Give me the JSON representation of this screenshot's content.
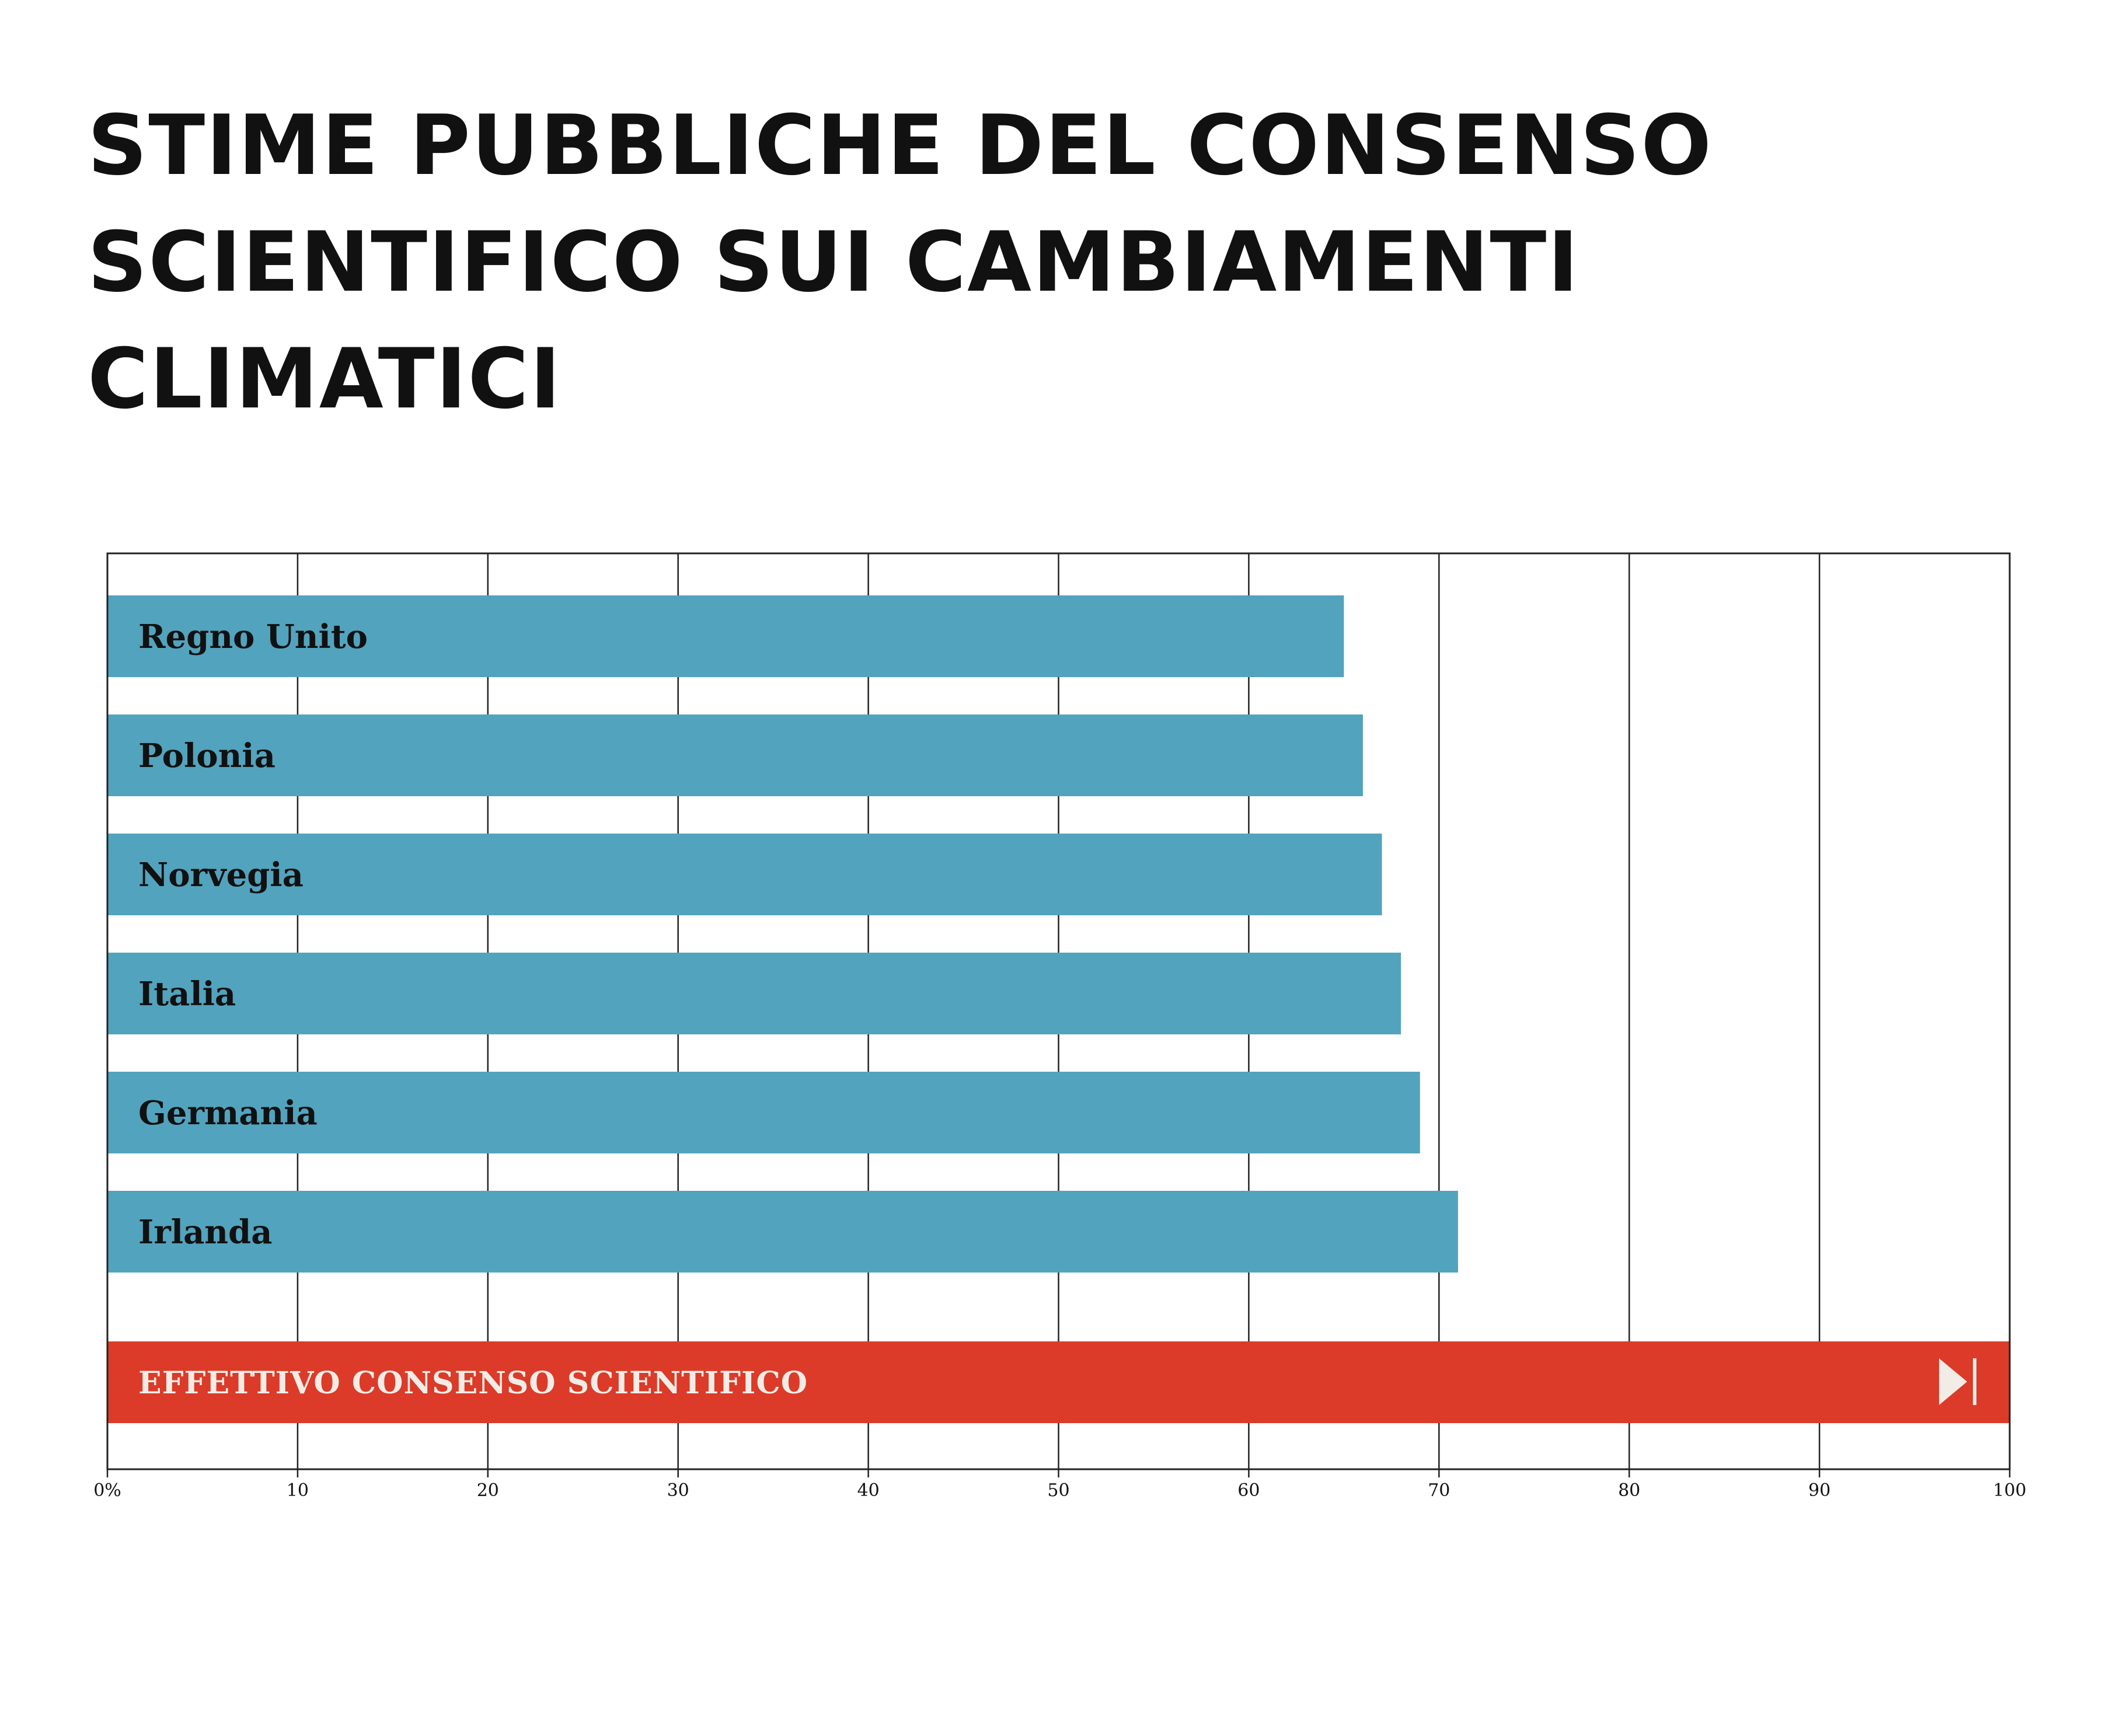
{
  "chart_data": {
    "type": "bar",
    "orientation": "horizontal",
    "title": "STIME PUBBLICHE DEL CONSENSO SCIENTIFICO SUI CAMBIAMENTI CLIMATICI",
    "categories": [
      "Regno Unito",
      "Polonia",
      "Norvegia",
      "Italia",
      "Germania",
      "Irlanda"
    ],
    "values": [
      65,
      66,
      67,
      68,
      69,
      71
    ],
    "reference": {
      "label": "EFFETTIVO CONSENSO SCIENTIFICO",
      "value": 100,
      "icon": "skip-to-end-icon"
    },
    "xlim": [
      0,
      100
    ],
    "xticks": [
      "0%",
      "10",
      "20",
      "30",
      "40",
      "50",
      "60",
      "70",
      "80",
      "90",
      "100"
    ],
    "grid": true,
    "colors": {
      "bars": "#52a3bd",
      "reference": "#db3b28",
      "reference_text": "#f2ece6",
      "grid": "#222222"
    }
  }
}
